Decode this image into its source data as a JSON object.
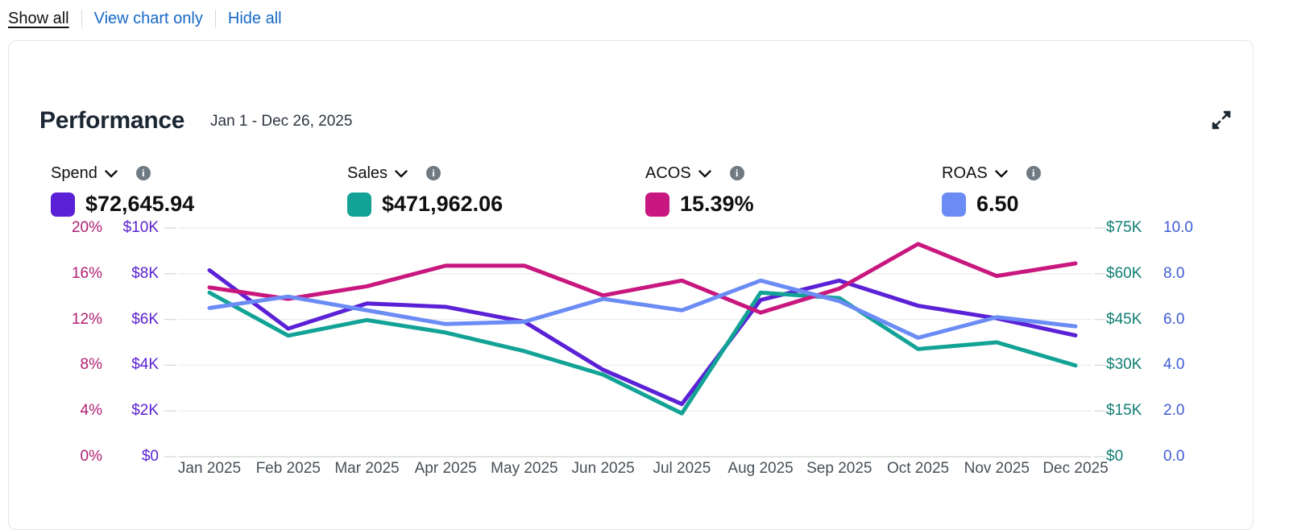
{
  "toolbar": {
    "show_all": "Show all",
    "view_chart_only": "View chart only",
    "hide_all": "Hide all"
  },
  "card": {
    "title": "Performance",
    "date_range": "Jan 1 - Dec 26, 2025",
    "metrics": [
      {
        "label": "Spend",
        "value": "$72,645.94",
        "color": "#5b21d6"
      },
      {
        "label": "Sales",
        "value": "$471,962.06",
        "color": "#12a296"
      },
      {
        "label": "ACOS",
        "value": "15.39%",
        "color": "#c8177e"
      },
      {
        "label": "ROAS",
        "value": "6.50",
        "color": "#6c8cf5"
      }
    ]
  },
  "chart_data": {
    "type": "line",
    "title": "Performance",
    "categories": [
      "Jan 2025",
      "Feb 2025",
      "Mar 2025",
      "Apr 2025",
      "May 2025",
      "Jun 2025",
      "Jul 2025",
      "Aug 2025",
      "Sep 2025",
      "Oct 2025",
      "Nov 2025",
      "Dec 2025"
    ],
    "grid": true,
    "legend_position": "none",
    "series": [
      {
        "name": "Spend",
        "color": "#5b21d6",
        "axis": "left_inner",
        "axis_max": 10000,
        "values": [
          8150,
          5600,
          6700,
          6550,
          5900,
          3800,
          2300,
          6850,
          7700,
          6600,
          6050,
          5300
        ]
      },
      {
        "name": "Sales",
        "color": "#12a296",
        "axis": "right_inner",
        "axis_max": 75000,
        "values": [
          53800,
          39700,
          44800,
          40700,
          34600,
          26900,
          14200,
          53800,
          52000,
          35300,
          37500,
          29900
        ]
      },
      {
        "name": "ACOS",
        "color": "#c8177e",
        "axis": "left_outer",
        "axis_max": 20,
        "values": [
          14.8,
          13.8,
          14.9,
          16.7,
          16.7,
          14.1,
          15.4,
          12.6,
          14.7,
          18.6,
          15.8,
          16.9
        ]
      },
      {
        "name": "ROAS",
        "color": "#6c8cf5",
        "axis": "right_outer",
        "axis_max": 10,
        "values": [
          6.5,
          7.0,
          6.4,
          5.8,
          5.9,
          6.9,
          6.4,
          7.7,
          6.8,
          5.2,
          6.1,
          5.7
        ]
      }
    ],
    "axes": {
      "left_outer": {
        "name": "ACOS",
        "color": "#b01e72",
        "labels": [
          "20%",
          "16%",
          "12%",
          "8%",
          "4%",
          "0%"
        ]
      },
      "left_inner": {
        "name": "Spend",
        "color": "#5a21d0",
        "labels": [
          "$10K",
          "$8K",
          "$6K",
          "$4K",
          "$2K",
          "$0"
        ]
      },
      "right_inner": {
        "name": "Sales",
        "color": "#0f7e74",
        "labels": [
          "$75K",
          "$60K",
          "$45K",
          "$30K",
          "$15K",
          "$0"
        ]
      },
      "right_outer": {
        "name": "ROAS",
        "color": "#3d5cd6",
        "labels": [
          "10.0",
          "8.0",
          "6.0",
          "4.0",
          "2.0",
          "0.0"
        ]
      }
    }
  }
}
